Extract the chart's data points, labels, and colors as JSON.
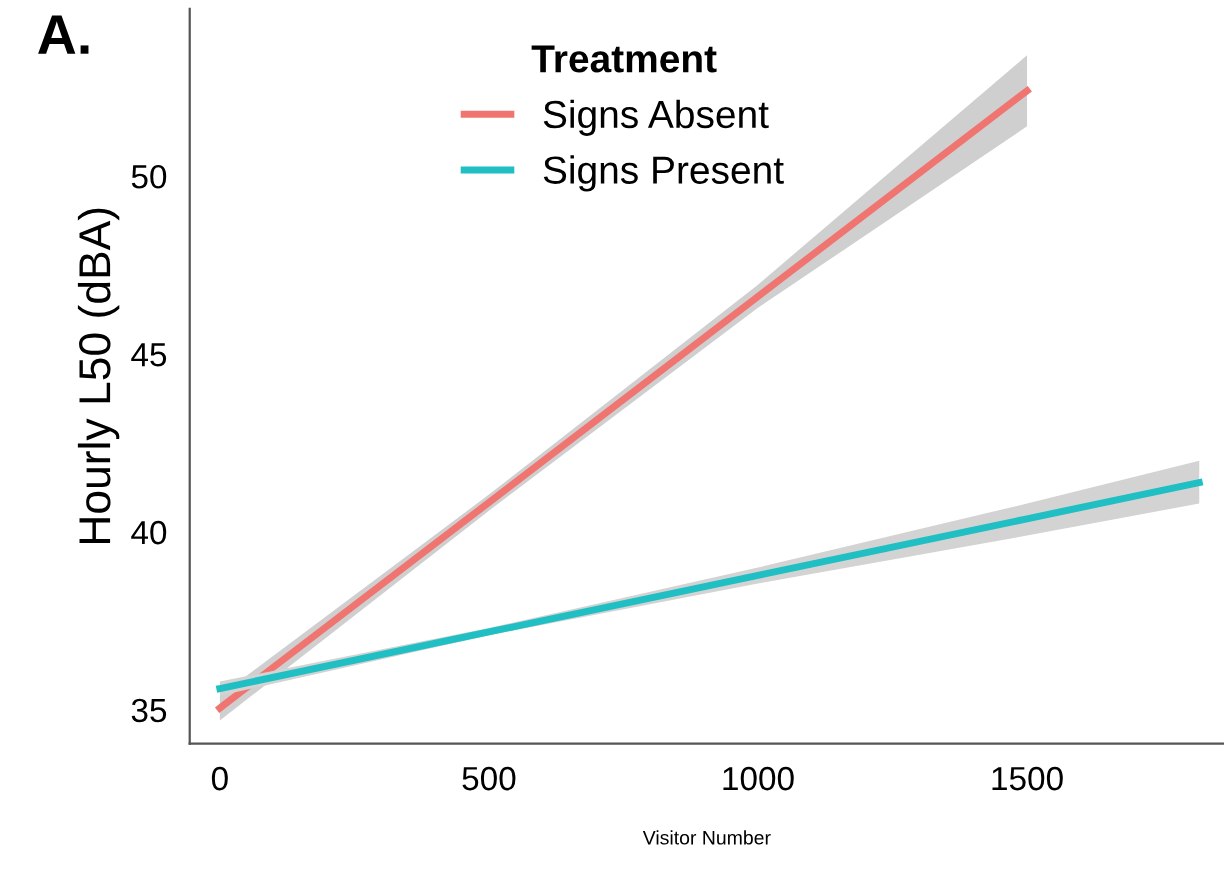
{
  "chart_data": {
    "type": "line",
    "xlabel": "Visitor Number",
    "ylabel": "Hourly L50 (dBA)",
    "legend_title": "Treatment",
    "annotations": [
      "A."
    ],
    "series": [
      {
        "name": "Signs Absent",
        "color": "#f07470",
        "x": [
          0,
          500,
          1000,
          1500
        ],
        "values": [
          35.05,
          40.83,
          46.62,
          52.4
        ],
        "lower": [
          34.7,
          40.6,
          46.3,
          51.4
        ],
        "upper": [
          35.4,
          41.05,
          46.95,
          53.4
        ]
      },
      {
        "name": "Signs Present",
        "color": "#1fbfc3",
        "x": [
          0,
          500,
          1000,
          1500,
          1820
        ],
        "values": [
          35.6,
          37.19,
          38.78,
          40.37,
          41.39
        ],
        "lower": [
          35.4,
          37.1,
          38.55,
          39.9,
          40.8
        ],
        "upper": [
          35.8,
          37.3,
          39.0,
          40.8,
          42.0
        ]
      }
    ],
    "xlim": [
      -56,
      1866
    ],
    "ylim": [
      34.05,
      54.7
    ],
    "xticks": [
      0,
      500,
      1000,
      1500
    ],
    "yticks": [
      35,
      40,
      45,
      50
    ],
    "grid": false,
    "legend": "top",
    "marker": "none",
    "line_style": "solid"
  }
}
